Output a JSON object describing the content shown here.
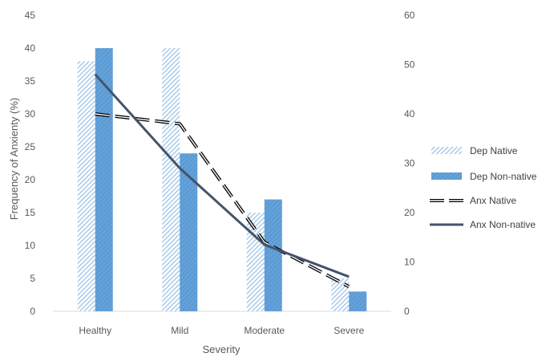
{
  "chart_data": {
    "type": "bar",
    "categories": [
      "Healthy",
      "Mild",
      "Moderate",
      "Severe"
    ],
    "xlabel": "Severity",
    "ylabel": "Frequency of Anxienty (%)",
    "ylim": [
      0,
      45
    ],
    "y_ticks": [
      "0",
      "5",
      "10",
      "15",
      "20",
      "25",
      "30",
      "35",
      "40",
      "45"
    ],
    "y2lim": [
      0,
      60
    ],
    "y2_ticks": [
      "0",
      "10",
      "20",
      "30",
      "40",
      "50",
      "60"
    ],
    "grid": false,
    "legend_position": "right",
    "series": [
      {
        "name": "Dep Native",
        "kind": "bar",
        "axis": "left",
        "pattern": "hatched",
        "color": "#9dc3e6",
        "values": [
          38,
          40,
          15,
          5
        ]
      },
      {
        "name": "Dep Non-native",
        "kind": "bar",
        "axis": "left",
        "pattern": "solid-hatched",
        "color": "#5b9bd5",
        "values": [
          40,
          24,
          17,
          3
        ]
      },
      {
        "name": "Anx Native",
        "kind": "line",
        "axis": "right",
        "style": "dashed",
        "color": "#000000",
        "values": [
          40,
          38,
          14,
          5
        ]
      },
      {
        "name": "Anx Non-native",
        "kind": "line",
        "axis": "right",
        "style": "solid",
        "color": "#44546a",
        "values": [
          48,
          29,
          13.5,
          7
        ]
      }
    ]
  }
}
